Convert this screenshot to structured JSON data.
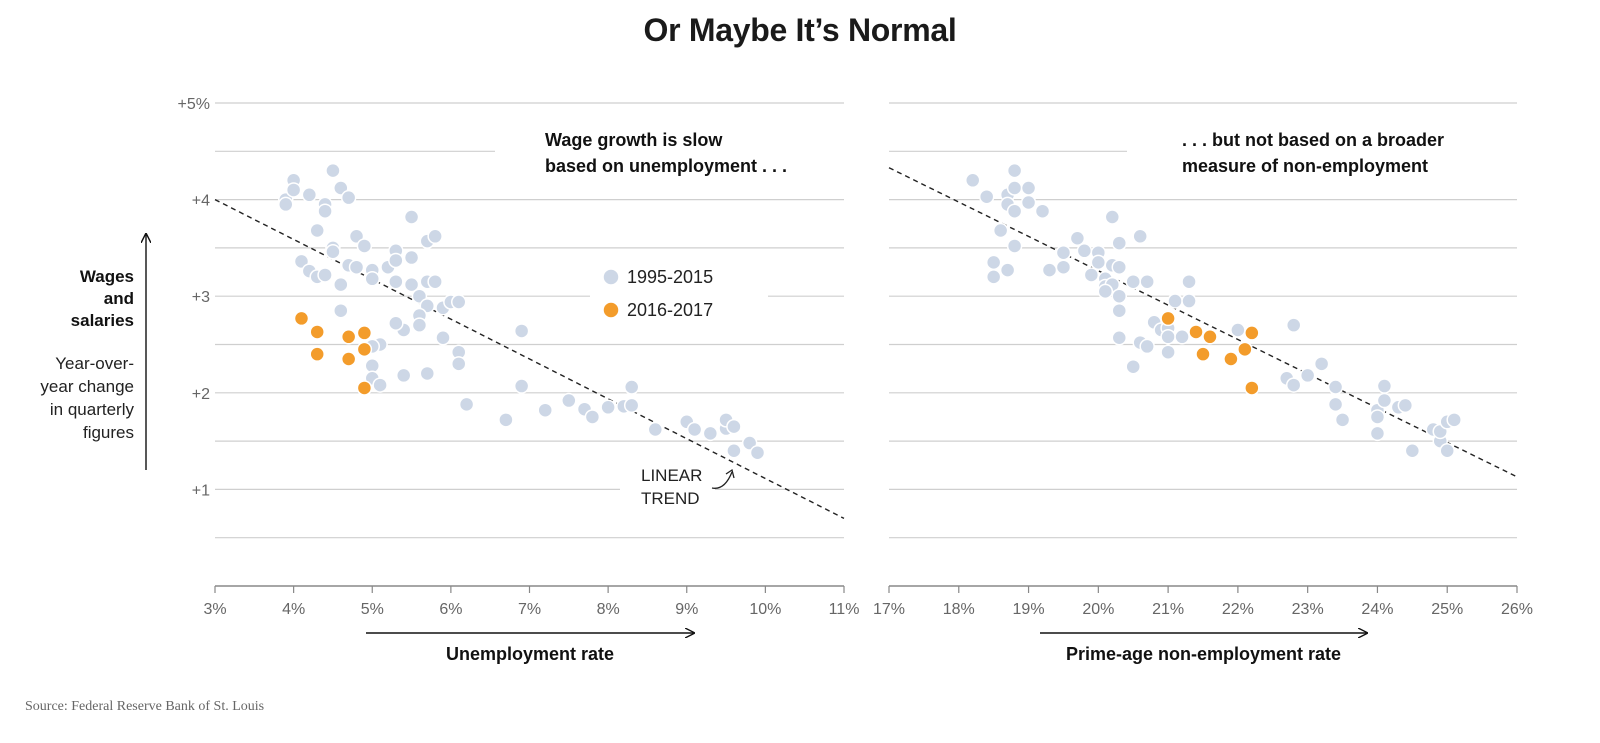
{
  "title": "Or Maybe It’s Normal",
  "source": "Source: Federal Reserve Bank of St. Louis",
  "y_axis": {
    "label_bold": [
      "Wages",
      "and",
      "salaries"
    ],
    "label_sub": [
      "Year-over-",
      "year change",
      "in quarterly",
      "figures"
    ],
    "tick_labels": [
      "+5%",
      "+4",
      "+3",
      "+2",
      "+1"
    ]
  },
  "legend": {
    "items": [
      {
        "label": "1995-2015",
        "color": "#cdd7e6"
      },
      {
        "label": "2016-2017",
        "color": "#f39c2b"
      }
    ]
  },
  "colors": {
    "old": "#cdd7e6",
    "new": "#f39c2b",
    "trend": "#222222"
  },
  "chart_data": [
    {
      "type": "scatter",
      "xlabel": "Unemployment rate",
      "ylabel": "Wages and salaries",
      "xlim": [
        3,
        11
      ],
      "ylim": [
        0,
        5
      ],
      "x_tick_labels": [
        "3%",
        "4%",
        "5%",
        "6%",
        "7%",
        "8%",
        "9%",
        "10%",
        "11%"
      ],
      "annotation": [
        "Wage growth is slow",
        "based on unemployment . . ."
      ],
      "trend_label": [
        "LINEAR",
        "TREND"
      ],
      "trend_line": {
        "x": [
          3,
          11
        ],
        "y": [
          4.0,
          0.7
        ]
      },
      "series": [
        {
          "name": "1995-2015",
          "points": [
            [
              3.9,
              4.0
            ],
            [
              3.9,
              3.95
            ],
            [
              4.0,
              4.2
            ],
            [
              4.0,
              4.1
            ],
            [
              4.2,
              4.05
            ],
            [
              4.4,
              3.95
            ],
            [
              4.4,
              3.88
            ],
            [
              4.5,
              4.3
            ],
            [
              4.6,
              4.12
            ],
            [
              4.7,
              4.02
            ],
            [
              4.3,
              3.68
            ],
            [
              4.5,
              3.5
            ],
            [
              4.5,
              3.46
            ],
            [
              4.8,
              3.62
            ],
            [
              4.9,
              3.52
            ],
            [
              4.1,
              3.36
            ],
            [
              4.2,
              3.26
            ],
            [
              4.3,
              3.2
            ],
            [
              4.4,
              3.22
            ],
            [
              4.6,
              3.12
            ],
            [
              4.7,
              3.32
            ],
            [
              4.8,
              3.3
            ],
            [
              5.0,
              3.27
            ],
            [
              5.0,
              3.18
            ],
            [
              5.2,
              3.3
            ],
            [
              5.3,
              3.47
            ],
            [
              5.3,
              3.37
            ],
            [
              5.5,
              3.82
            ],
            [
              5.5,
              3.4
            ],
            [
              5.3,
              3.15
            ],
            [
              5.5,
              3.12
            ],
            [
              5.7,
              3.57
            ],
            [
              5.8,
              3.62
            ],
            [
              5.7,
              3.15
            ],
            [
              5.8,
              3.15
            ],
            [
              5.6,
              3.0
            ],
            [
              5.7,
              2.9
            ],
            [
              5.9,
              2.88
            ],
            [
              6.0,
              2.94
            ],
            [
              6.1,
              2.94
            ],
            [
              5.6,
              2.8
            ],
            [
              5.6,
              2.7
            ],
            [
              5.4,
              2.65
            ],
            [
              5.3,
              2.72
            ],
            [
              4.6,
              2.85
            ],
            [
              5.9,
              2.57
            ],
            [
              5.1,
              2.5
            ],
            [
              5.0,
              2.48
            ],
            [
              5.0,
              2.28
            ],
            [
              5.0,
              2.15
            ],
            [
              5.1,
              2.08
            ],
            [
              5.4,
              2.18
            ],
            [
              5.7,
              2.2
            ],
            [
              6.1,
              2.42
            ],
            [
              6.1,
              2.3
            ],
            [
              6.2,
              1.88
            ],
            [
              6.9,
              2.64
            ],
            [
              6.9,
              2.07
            ],
            [
              6.7,
              1.72
            ],
            [
              7.2,
              1.82
            ],
            [
              7.5,
              1.92
            ],
            [
              7.7,
              1.83
            ],
            [
              7.8,
              1.75
            ],
            [
              8.0,
              1.85
            ],
            [
              8.2,
              1.86
            ],
            [
              8.3,
              1.87
            ],
            [
              8.3,
              2.06
            ],
            [
              8.6,
              1.62
            ],
            [
              9.0,
              1.7
            ],
            [
              9.1,
              1.62
            ],
            [
              9.3,
              1.58
            ],
            [
              9.5,
              1.63
            ],
            [
              9.5,
              1.72
            ],
            [
              9.6,
              1.65
            ],
            [
              9.6,
              1.4
            ],
            [
              9.8,
              1.48
            ],
            [
              9.9,
              1.38
            ]
          ]
        },
        {
          "name": "2016-2017",
          "points": [
            [
              4.1,
              2.77
            ],
            [
              4.3,
              2.63
            ],
            [
              4.3,
              2.4
            ],
            [
              4.7,
              2.58
            ],
            [
              4.9,
              2.62
            ],
            [
              4.9,
              2.45
            ],
            [
              4.7,
              2.35
            ],
            [
              4.9,
              2.05
            ]
          ]
        }
      ]
    },
    {
      "type": "scatter",
      "xlabel": "Prime-age non-employment rate",
      "ylabel": "Wages and salaries",
      "xlim": [
        17,
        26
      ],
      "ylim": [
        0,
        5
      ],
      "x_tick_labels": [
        "17%",
        "18%",
        "19%",
        "20%",
        "21%",
        "22%",
        "23%",
        "24%",
        "25%",
        "26%"
      ],
      "annotation": [
        ". . . but not based on a broader",
        "measure of non-employment"
      ],
      "trend_line": {
        "x": [
          17,
          26
        ],
        "y": [
          4.33,
          1.13
        ]
      },
      "series": [
        {
          "name": "1995-2015",
          "points": [
            [
              18.2,
              4.2
            ],
            [
              18.4,
              4.03
            ],
            [
              18.7,
              4.05
            ],
            [
              18.7,
              3.95
            ],
            [
              18.8,
              4.3
            ],
            [
              18.8,
              4.12
            ],
            [
              18.8,
              3.88
            ],
            [
              19.0,
              4.12
            ],
            [
              19.0,
              3.97
            ],
            [
              19.2,
              3.88
            ],
            [
              18.6,
              3.68
            ],
            [
              18.8,
              3.52
            ],
            [
              18.5,
              3.35
            ],
            [
              18.5,
              3.2
            ],
            [
              18.7,
              3.27
            ],
            [
              19.3,
              3.27
            ],
            [
              19.5,
              3.3
            ],
            [
              19.5,
              3.45
            ],
            [
              19.7,
              3.6
            ],
            [
              19.8,
              3.47
            ],
            [
              20.0,
              3.45
            ],
            [
              20.0,
              3.35
            ],
            [
              20.2,
              3.82
            ],
            [
              20.3,
              3.55
            ],
            [
              20.6,
              3.62
            ],
            [
              19.9,
              3.22
            ],
            [
              20.1,
              3.18
            ],
            [
              20.1,
              3.1
            ],
            [
              20.2,
              3.32
            ],
            [
              20.3,
              3.3
            ],
            [
              20.5,
              3.15
            ],
            [
              20.7,
              3.15
            ],
            [
              20.2,
              3.12
            ],
            [
              20.1,
              3.05
            ],
            [
              20.3,
              3.0
            ],
            [
              20.3,
              2.85
            ],
            [
              20.3,
              2.57
            ],
            [
              20.5,
              2.27
            ],
            [
              20.6,
              2.52
            ],
            [
              20.7,
              2.48
            ],
            [
              20.8,
              2.73
            ],
            [
              20.9,
              2.65
            ],
            [
              21.0,
              2.67
            ],
            [
              21.0,
              2.58
            ],
            [
              21.0,
              2.42
            ],
            [
              21.2,
              2.58
            ],
            [
              21.1,
              2.95
            ],
            [
              21.3,
              2.95
            ],
            [
              21.3,
              3.15
            ],
            [
              22.0,
              2.65
            ],
            [
              22.8,
              2.7
            ],
            [
              22.7,
              2.15
            ],
            [
              22.8,
              2.08
            ],
            [
              23.0,
              2.18
            ],
            [
              23.2,
              2.3
            ],
            [
              23.4,
              2.06
            ],
            [
              23.4,
              1.88
            ],
            [
              23.5,
              1.72
            ],
            [
              24.0,
              1.82
            ],
            [
              24.0,
              1.75
            ],
            [
              24.0,
              1.58
            ],
            [
              24.1,
              2.07
            ],
            [
              24.1,
              1.92
            ],
            [
              24.3,
              1.85
            ],
            [
              24.4,
              1.87
            ],
            [
              24.5,
              1.4
            ],
            [
              24.8,
              1.62
            ],
            [
              24.9,
              1.5
            ],
            [
              24.9,
              1.6
            ],
            [
              25.0,
              1.7
            ],
            [
              25.0,
              1.4
            ],
            [
              25.1,
              1.72
            ]
          ]
        },
        {
          "name": "2016-2017",
          "points": [
            [
              21.0,
              2.77
            ],
            [
              21.4,
              2.63
            ],
            [
              21.6,
              2.58
            ],
            [
              22.2,
              2.62
            ],
            [
              22.1,
              2.45
            ],
            [
              21.5,
              2.4
            ],
            [
              21.9,
              2.35
            ],
            [
              22.2,
              2.05
            ]
          ]
        }
      ]
    }
  ]
}
